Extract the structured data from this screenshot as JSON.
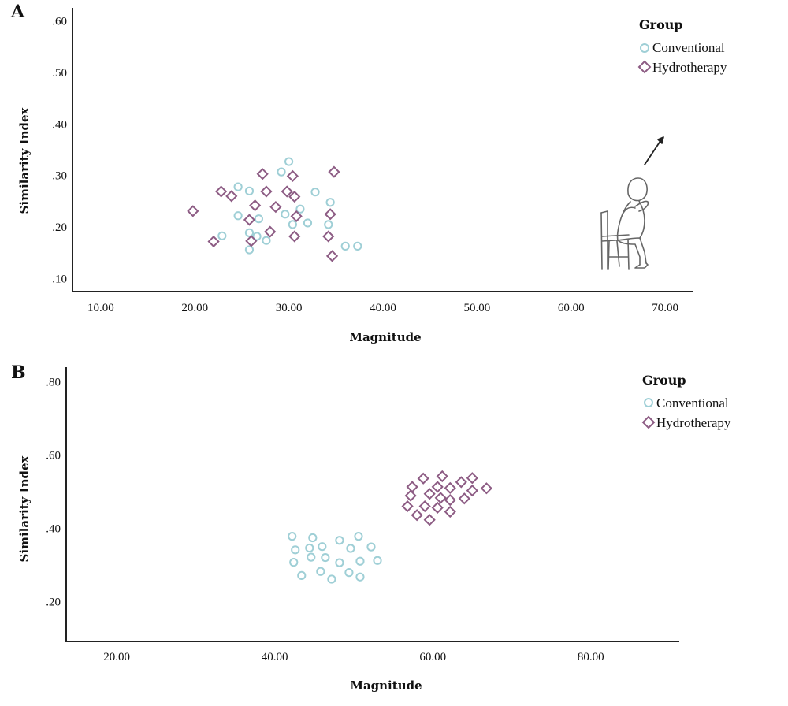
{
  "chart_data": [
    {
      "type": "scatter",
      "panel_label": "A",
      "xlabel": "Magnitude",
      "ylabel": "Similarity Index",
      "xlim": [
        7.0,
        73.0
      ],
      "ylim": [
        0.075,
        0.625
      ],
      "x_ticks": [
        10,
        20,
        30,
        40,
        50,
        60,
        70
      ],
      "x_tick_labels": [
        "10.00",
        "20.00",
        "30.00",
        "40.00",
        "50.00",
        "60.00",
        "70.00"
      ],
      "y_ticks": [
        0.1,
        0.2,
        0.3,
        0.4,
        0.5,
        0.6
      ],
      "y_tick_labels": [
        ".10",
        ".20",
        ".30",
        ".40",
        ".50",
        ".60"
      ],
      "grid": false,
      "legend": {
        "title": "Group",
        "position": "top-right"
      },
      "annotation_icon": "person-standing-from-chair-icon",
      "series": [
        {
          "name": "Conventional",
          "marker": "circle",
          "color": "#9fcfd6",
          "points": [
            [
              30.0,
              0.327
            ],
            [
              29.2,
              0.307
            ],
            [
              24.6,
              0.278
            ],
            [
              25.8,
              0.27
            ],
            [
              32.8,
              0.268
            ],
            [
              34.4,
              0.248
            ],
            [
              31.2,
              0.235
            ],
            [
              24.6,
              0.222
            ],
            [
              29.6,
              0.225
            ],
            [
              26.8,
              0.216
            ],
            [
              32.0,
              0.208
            ],
            [
              30.4,
              0.205
            ],
            [
              34.2,
              0.205
            ],
            [
              25.8,
              0.189
            ],
            [
              26.6,
              0.182
            ],
            [
              22.9,
              0.183
            ],
            [
              27.6,
              0.174
            ],
            [
              25.8,
              0.156
            ],
            [
              36.0,
              0.163
            ],
            [
              37.3,
              0.163
            ]
          ]
        },
        {
          "name": "Hydrotherapy",
          "marker": "diamond",
          "color": "#8d5c84",
          "points": [
            [
              27.2,
              0.303
            ],
            [
              30.4,
              0.299
            ],
            [
              34.8,
              0.307
            ],
            [
              22.8,
              0.269
            ],
            [
              23.9,
              0.26
            ],
            [
              27.6,
              0.269
            ],
            [
              29.8,
              0.269
            ],
            [
              30.6,
              0.259
            ],
            [
              26.4,
              0.242
            ],
            [
              28.6,
              0.239
            ],
            [
              19.8,
              0.231
            ],
            [
              25.8,
              0.214
            ],
            [
              30.8,
              0.221
            ],
            [
              34.4,
              0.225
            ],
            [
              28.0,
              0.191
            ],
            [
              22.0,
              0.172
            ],
            [
              26.0,
              0.173
            ],
            [
              30.6,
              0.182
            ],
            [
              34.2,
              0.182
            ],
            [
              34.6,
              0.144
            ]
          ]
        }
      ]
    },
    {
      "type": "scatter",
      "panel_label": "B",
      "xlabel": "Magnitude",
      "ylabel": "Similarity Index",
      "xlim": [
        13.6,
        91.2
      ],
      "ylim": [
        0.091,
        0.84
      ],
      "x_ticks": [
        20,
        40,
        60,
        80
      ],
      "x_tick_labels": [
        "20.00",
        "40.00",
        "60.00",
        "80.00"
      ],
      "y_ticks": [
        0.2,
        0.4,
        0.6,
        0.8
      ],
      "y_tick_labels": [
        ".20",
        ".40",
        ".60",
        ".80"
      ],
      "grid": false,
      "legend": {
        "title": "Group",
        "position": "top-right"
      },
      "series": [
        {
          "name": "Conventional",
          "marker": "circle",
          "color": "#9fcfd6",
          "points": [
            [
              42.2,
              0.378
            ],
            [
              44.8,
              0.374
            ],
            [
              50.6,
              0.378
            ],
            [
              48.2,
              0.367
            ],
            [
              42.6,
              0.341
            ],
            [
              44.4,
              0.346
            ],
            [
              46.0,
              0.35
            ],
            [
              52.2,
              0.349
            ],
            [
              49.6,
              0.345
            ],
            [
              44.6,
              0.321
            ],
            [
              46.4,
              0.32
            ],
            [
              42.4,
              0.307
            ],
            [
              48.2,
              0.306
            ],
            [
              50.8,
              0.31
            ],
            [
              53.0,
              0.312
            ],
            [
              43.4,
              0.271
            ],
            [
              45.8,
              0.282
            ],
            [
              49.4,
              0.279
            ],
            [
              47.2,
              0.261
            ],
            [
              50.8,
              0.267
            ]
          ]
        },
        {
          "name": "Hydrotherapy",
          "marker": "diamond",
          "color": "#8d5c84",
          "points": [
            [
              61.2,
              0.542
            ],
            [
              58.8,
              0.536
            ],
            [
              65.0,
              0.537
            ],
            [
              63.6,
              0.526
            ],
            [
              57.4,
              0.513
            ],
            [
              60.6,
              0.513
            ],
            [
              62.2,
              0.51
            ],
            [
              66.8,
              0.509
            ],
            [
              65.0,
              0.503
            ],
            [
              57.2,
              0.489
            ],
            [
              59.6,
              0.494
            ],
            [
              61.0,
              0.483
            ],
            [
              62.2,
              0.477
            ],
            [
              64.0,
              0.481
            ],
            [
              56.8,
              0.46
            ],
            [
              59.0,
              0.46
            ],
            [
              60.6,
              0.456
            ],
            [
              58.0,
              0.436
            ],
            [
              62.2,
              0.445
            ],
            [
              59.6,
              0.423
            ]
          ]
        }
      ]
    }
  ]
}
